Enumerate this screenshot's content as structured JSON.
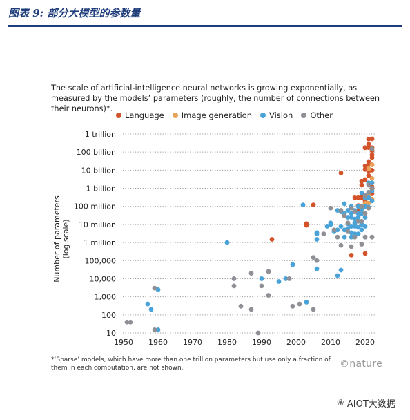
{
  "header": {
    "title": "图表 9:  部分大模型的参数量"
  },
  "chart_caption": "The scale of artificial-intelligence neural networks is growing exponentially, as measured by the models’ parameters (roughly, the number of connections between their neurons)*.",
  "footnote": "*‘Sparse’ models, which have more than one trillion parameters but use only a fraction of them in each computation, are not shown.",
  "logo": "©nature",
  "watermark": "AIOT大数据",
  "colors": {
    "Language": "#d3542a",
    "Image generation": "#e8a25a",
    "Vision": "#4aa3d8",
    "Other": "#8e9096",
    "header": "#1f3d7a"
  },
  "chart_data": {
    "type": "scatter",
    "y_scale": "log",
    "xlim": [
      1950,
      2023
    ],
    "ylim": [
      10,
      1000000000000
    ],
    "x_ticks": [
      1950,
      1960,
      1970,
      1980,
      1990,
      2000,
      2010,
      2020
    ],
    "y_ticks": [
      {
        "value": 10,
        "label": "10"
      },
      {
        "value": 100,
        "label": "100"
      },
      {
        "value": 1000,
        "label": "1,000"
      },
      {
        "value": 10000,
        "label": "10,000"
      },
      {
        "value": 100000,
        "label": "100,000"
      },
      {
        "value": 1000000,
        "label": "1 million"
      },
      {
        "value": 10000000,
        "label": "10 million"
      },
      {
        "value": 100000000,
        "label": "100 million"
      },
      {
        "value": 1000000000,
        "label": "1 billion"
      },
      {
        "value": 10000000000,
        "label": "10 billion"
      },
      {
        "value": 100000000000,
        "label": "100 billion"
      },
      {
        "value": 1000000000000,
        "label": "1 trillion"
      }
    ],
    "ylabel": "Number of parameters (log scale)",
    "grid": "horizontal-dotted",
    "legend_position": "top",
    "series": [
      {
        "name": "Language",
        "points": [
          [
            1993,
            1500000
          ],
          [
            2003,
            11000000
          ],
          [
            2003,
            9000000
          ],
          [
            2005,
            120000000
          ],
          [
            2013,
            7000000000
          ],
          [
            2016,
            200000
          ],
          [
            2017,
            300000000
          ],
          [
            2018,
            60000000
          ],
          [
            2018,
            110000000
          ],
          [
            2018,
            300000000
          ],
          [
            2019,
            340000000
          ],
          [
            2019,
            1500000000
          ],
          [
            2019,
            2500000000
          ],
          [
            2019,
            300000000
          ],
          [
            2020,
            11000000000
          ],
          [
            2020,
            175000000000
          ],
          [
            2020,
            17000000000
          ],
          [
            2020,
            3000000000
          ],
          [
            2020,
            200000000
          ],
          [
            2020,
            250000
          ],
          [
            2021,
            280000000000
          ],
          [
            2021,
            530000000000
          ],
          [
            2021,
            178000000000
          ],
          [
            2021,
            9000000000
          ],
          [
            2021,
            20000000000
          ],
          [
            2021,
            11000000000
          ],
          [
            2021,
            5000000000
          ],
          [
            2021,
            30000000000
          ],
          [
            2022,
            540000000000
          ],
          [
            2022,
            70000000000
          ],
          [
            2022,
            175000000000
          ],
          [
            2022,
            20000000000
          ],
          [
            2022,
            10000000000
          ],
          [
            2022,
            120000000000
          ],
          [
            2022,
            50000000000
          ],
          [
            2022,
            1200000000
          ],
          [
            2022,
            500000000
          ]
        ]
      },
      {
        "name": "Image generation",
        "points": [
          [
            2018,
            100000000
          ],
          [
            2019,
            50000000
          ],
          [
            2020,
            150000000
          ],
          [
            2021,
            12000000000
          ],
          [
            2021,
            150000000
          ],
          [
            2021,
            400000000
          ],
          [
            2022,
            3500000000
          ],
          [
            2022,
            900000000
          ],
          [
            2022,
            20000000000
          ],
          [
            2022,
            250000000
          ],
          [
            2022,
            2000000000
          ]
        ]
      },
      {
        "name": "Vision",
        "points": [
          [
            1958,
            200
          ],
          [
            1957,
            400
          ],
          [
            1960,
            2500
          ],
          [
            1960,
            15
          ],
          [
            1980,
            1000000
          ],
          [
            1990,
            10000
          ],
          [
            1995,
            7000
          ],
          [
            1997,
            10000
          ],
          [
            1999,
            60000
          ],
          [
            2003,
            500
          ],
          [
            2006,
            3500000
          ],
          [
            2006,
            35000
          ],
          [
            2006,
            1500000
          ],
          [
            2009,
            8000000
          ],
          [
            2010,
            10000000
          ],
          [
            2010,
            12000000
          ],
          [
            2011,
            4000000
          ],
          [
            2012,
            60000000
          ],
          [
            2012,
            5000000
          ],
          [
            2012,
            15000
          ],
          [
            2013,
            30000
          ],
          [
            2013,
            8000000
          ],
          [
            2013,
            50000000
          ],
          [
            2014,
            140000000
          ],
          [
            2014,
            5000000
          ],
          [
            2014,
            2000000
          ],
          [
            2014,
            40000000
          ],
          [
            2015,
            25000000
          ],
          [
            2015,
            60000000
          ],
          [
            2015,
            6000000
          ],
          [
            2015,
            11000000
          ],
          [
            2016,
            25000000
          ],
          [
            2016,
            8000000
          ],
          [
            2016,
            2000000
          ],
          [
            2016,
            3500000
          ],
          [
            2016,
            100000000
          ],
          [
            2016,
            40000000
          ],
          [
            2017,
            3000000
          ],
          [
            2017,
            12000000
          ],
          [
            2017,
            60000000
          ],
          [
            2017,
            20000000
          ],
          [
            2017,
            8000000
          ],
          [
            2018,
            100000000
          ],
          [
            2018,
            7000000
          ],
          [
            2018,
            3000000
          ],
          [
            2018,
            25000000
          ],
          [
            2018,
            40000000
          ],
          [
            2019,
            550000000
          ],
          [
            2019,
            70000000
          ],
          [
            2019,
            10000000
          ],
          [
            2019,
            5000000
          ],
          [
            2019,
            40000000
          ],
          [
            2020,
            100000000
          ],
          [
            2020,
            300000000
          ],
          [
            2020,
            25000000
          ],
          [
            2020,
            8000000
          ],
          [
            2021,
            300000000
          ],
          [
            2021,
            2000000000
          ],
          [
            2021,
            600000000
          ],
          [
            2021,
            90000000
          ],
          [
            2022,
            2000000000
          ],
          [
            2022,
            200000000
          ],
          [
            2022,
            700000000
          ],
          [
            2002,
            120000000
          ],
          [
            2006,
            3000000
          ]
        ]
      },
      {
        "name": "Other",
        "points": [
          [
            1951,
            40
          ],
          [
            1952,
            40
          ],
          [
            1959,
            3000
          ],
          [
            1959,
            15
          ],
          [
            1982,
            10000
          ],
          [
            1982,
            4000
          ],
          [
            1984,
            300
          ],
          [
            1987,
            200
          ],
          [
            1987,
            20000
          ],
          [
            1989,
            10
          ],
          [
            1990,
            4000
          ],
          [
            1992,
            25000
          ],
          [
            1992,
            1200
          ],
          [
            1998,
            10000
          ],
          [
            1999,
            300
          ],
          [
            2001,
            400
          ],
          [
            2005,
            200
          ],
          [
            2005,
            150000
          ],
          [
            2006,
            100000
          ],
          [
            2008,
            3000000
          ],
          [
            2010,
            80000000
          ],
          [
            2011,
            5000000
          ],
          [
            2012,
            2000000
          ],
          [
            2013,
            700000
          ],
          [
            2013,
            60000000
          ],
          [
            2014,
            30000000
          ],
          [
            2015,
            4000000
          ],
          [
            2015,
            12000000
          ],
          [
            2016,
            80000000
          ],
          [
            2016,
            600000
          ],
          [
            2017,
            2000000
          ],
          [
            2017,
            50000000
          ],
          [
            2018,
            15000000
          ],
          [
            2019,
            100000000
          ],
          [
            2019,
            15000000
          ],
          [
            2019,
            800000
          ],
          [
            2020,
            2000000
          ],
          [
            2020,
            40000000
          ],
          [
            2020,
            400000000
          ],
          [
            2021,
            80000000
          ],
          [
            2021,
            1500000000
          ],
          [
            2021,
            600000000
          ],
          [
            2022,
            1000000000
          ],
          [
            2022,
            150000000000
          ],
          [
            2022,
            2000000
          ]
        ]
      }
    ]
  }
}
